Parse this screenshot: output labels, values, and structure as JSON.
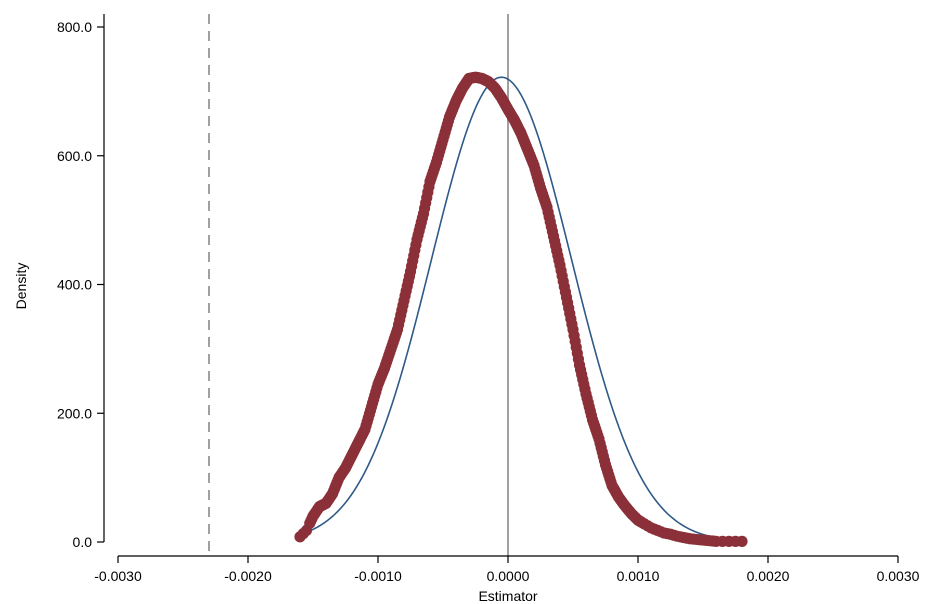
{
  "chart_data": {
    "type": "scatter",
    "xlabel": "Estimator",
    "ylabel": "Density",
    "xlim": [
      -0.003,
      0.003
    ],
    "ylim": [
      0,
      800
    ],
    "x_ticks": [
      -0.003,
      -0.002,
      -0.001,
      0.0,
      0.001,
      0.002,
      0.003
    ],
    "x_tick_labels": [
      "-0.0030",
      "-0.0020",
      "-0.0010",
      "0.0000",
      "0.0010",
      "0.0020",
      "0.0030"
    ],
    "y_ticks": [
      0,
      200,
      400,
      600,
      800
    ],
    "y_tick_labels": [
      "0.0",
      "200.0",
      "400.0",
      "600.0",
      "800.0"
    ],
    "grid": false,
    "reference_lines": [
      {
        "x": 0.0,
        "style": "solid",
        "color": "#a0a0a0"
      },
      {
        "x": -0.0023,
        "style": "dashed",
        "color": "#a0a0a0"
      }
    ],
    "series": [
      {
        "kind": "points",
        "color": "#8b3038",
        "x": [
          -0.0016,
          -0.00155,
          -0.0015,
          -0.00145,
          -0.0014,
          -0.00135,
          -0.0013,
          -0.00125,
          -0.0012,
          -0.00115,
          -0.0011,
          -0.00105,
          -0.001,
          -0.00095,
          -0.0009,
          -0.00085,
          -0.0008,
          -0.00075,
          -0.0007,
          -0.00065,
          -0.0006,
          -0.00055,
          -0.0005,
          -0.00045,
          -0.0004,
          -0.00035,
          -0.0003,
          -0.00025,
          -0.0002,
          -0.00015,
          -0.0001,
          -5e-05,
          0.0,
          5e-05,
          0.0001,
          0.00015,
          0.0002,
          0.00025,
          0.0003,
          0.00035,
          0.0004,
          0.00045,
          0.0005,
          0.00055,
          0.0006,
          0.00065,
          0.0007,
          0.00075,
          0.0008,
          0.00085,
          0.0009,
          0.00095,
          0.001,
          0.00105,
          0.0011,
          0.00115,
          0.0012,
          0.00125,
          0.0013,
          0.00135,
          0.0014,
          0.00145,
          0.0015,
          0.00155,
          0.0016,
          0.0017,
          0.0018
        ],
        "y": [
          8,
          18,
          40,
          55,
          60,
          75,
          100,
          115,
          135,
          155,
          175,
          210,
          245,
          270,
          300,
          330,
          375,
          420,
          470,
          510,
          560,
          590,
          625,
          660,
          685,
          705,
          720,
          722,
          720,
          715,
          705,
          690,
          672,
          655,
          635,
          610,
          585,
          550,
          520,
          475,
          430,
          380,
          330,
          275,
          230,
          190,
          160,
          120,
          88,
          70,
          56,
          44,
          34,
          28,
          22,
          18,
          14,
          12,
          9,
          7,
          5,
          4,
          3,
          2,
          1,
          1,
          1
        ]
      },
      {
        "kind": "fitted-curve",
        "color": "#2e5a88",
        "mean": -5e-05,
        "sd": 0.00054
      }
    ]
  }
}
